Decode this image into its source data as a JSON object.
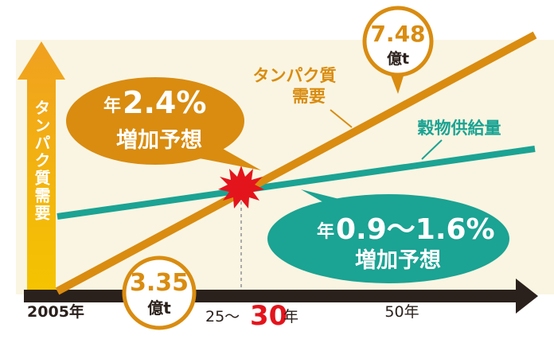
{
  "y_axis_label": "タンパク質需要",
  "x_labels": {
    "start": "2005年",
    "middle": {
      "prefix": "25～",
      "emphasis": "30",
      "suffix": "年"
    },
    "end": "50年"
  },
  "series_labels": {
    "protein": [
      "タンパク質",
      "需要"
    ],
    "grain": "穀物供給量"
  },
  "callouts": {
    "protein_growth": {
      "prefix": "年",
      "value": "2.4%",
      "text": "増加予想"
    },
    "grain_growth": {
      "prefix": "年",
      "value": "0.9～1.6%",
      "text": "増加予想"
    },
    "start_value": {
      "value": "3.35",
      "unit": "億t"
    },
    "end_value": {
      "value": "7.48",
      "unit": "億t"
    }
  }
}
